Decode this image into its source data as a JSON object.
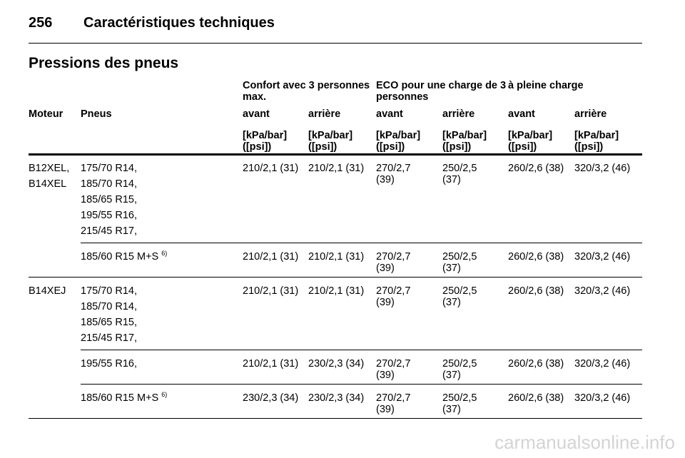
{
  "header": {
    "page": "256",
    "title": "Caractéristiques techniques"
  },
  "section_title": "Pressions des pneus",
  "table": {
    "groups": [
      "Confort avec 3 personnes max.",
      "ECO pour une charge de 3 personnes",
      "à pleine charge"
    ],
    "columns": [
      "Moteur",
      "Pneus",
      "avant",
      "arrière",
      "avant",
      "arrière",
      "avant",
      "arrière"
    ],
    "units": [
      "[kPa/bar] ([psi])",
      "[kPa/bar] ([psi])",
      "[kPa/bar] ([psi])",
      "[kPa/bar] ([psi])",
      "[kPa/bar] ([psi])",
      "[kPa/bar] ([psi])"
    ],
    "blocks": [
      {
        "engines": [
          "B12XEL,",
          "B14XEL"
        ],
        "rows": [
          {
            "tyres": [
              "175/70 R14,",
              "185/70 R14,",
              "185/65 R15,",
              "195/55 R16,",
              "215/45 R17,"
            ],
            "values": [
              "210/2,1 (31)",
              "210/2,1 (31)",
              "270/2,7 (39)",
              "250/2,5 (37)",
              "260/2,6 (38)",
              "320/3,2 (46)"
            ]
          },
          {
            "tyres": [
              "185/60 R15 M+S"
            ],
            "footnote": "6)",
            "values": [
              "210/2,1 (31)",
              "210/2,1 (31)",
              "270/2,7 (39)",
              "250/2,5 (37)",
              "260/2,6 (38)",
              "320/3,2 (46)"
            ]
          }
        ]
      },
      {
        "engines": [
          "B14XEJ"
        ],
        "rows": [
          {
            "tyres": [
              "175/70 R14,",
              "185/70 R14,",
              "185/65 R15,",
              "215/45 R17,"
            ],
            "values": [
              "210/2,1 (31)",
              "210/2,1 (31)",
              "270/2,7 (39)",
              "250/2,5 (37)",
              "260/2,6 (38)",
              "320/3,2 (46)"
            ]
          },
          {
            "tyres": [
              "195/55 R16,"
            ],
            "values": [
              "210/2,1 (31)",
              "230/2,3 (34)",
              "270/2,7 (39)",
              "250/2,5 (37)",
              "260/2,6 (38)",
              "320/3,2 (46)"
            ]
          },
          {
            "tyres": [
              "185/60 R15 M+S"
            ],
            "footnote": "6)",
            "values": [
              "230/2,3 (34)",
              "230/2,3 (34)",
              "270/2,7 (39)",
              "250/2,5 (37)",
              "260/2,6 (38)",
              "320/3,2 (46)"
            ]
          }
        ]
      }
    ]
  },
  "watermark": "carmanualsonline.info"
}
